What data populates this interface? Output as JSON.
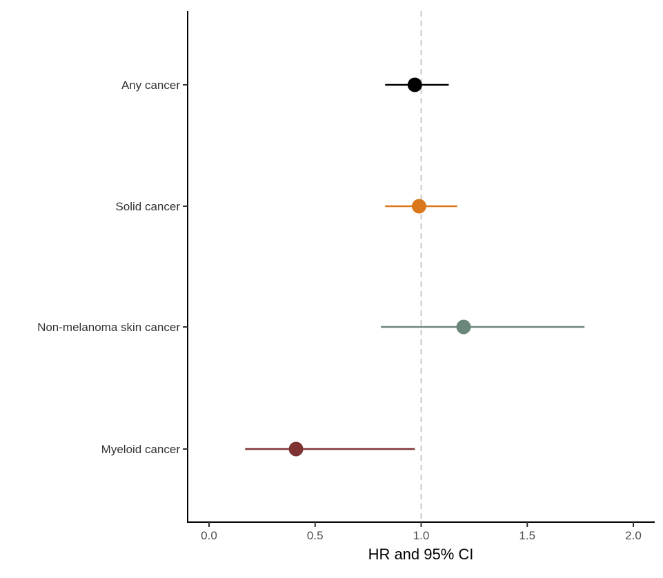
{
  "chart_data": {
    "type": "forest",
    "title": "",
    "xlabel": "HR and 95% CI",
    "ylabel": "",
    "xlim": [
      -0.1,
      2.1
    ],
    "xticks": [
      0.0,
      0.5,
      1.0,
      1.5,
      2.0
    ],
    "xtick_labels": [
      "0.0",
      "0.5",
      "1.0",
      "1.5",
      "2.0"
    ],
    "reference_line": 1.0,
    "grid": false,
    "legend": "none",
    "rows": [
      {
        "label": "Any cancer",
        "hr": 0.97,
        "lower": 0.83,
        "upper": 1.13,
        "color": "#000000"
      },
      {
        "label": "Solid cancer",
        "hr": 0.99,
        "lower": 0.83,
        "upper": 1.17,
        "color": "#D9771A"
      },
      {
        "label": "Non-melanoma skin cancer",
        "hr": 1.2,
        "lower": 0.81,
        "upper": 1.77,
        "color": "#6B877A"
      },
      {
        "label": "Myeloid cancer",
        "hr": 0.41,
        "lower": 0.17,
        "upper": 0.97,
        "color": "#7E3232"
      }
    ]
  }
}
